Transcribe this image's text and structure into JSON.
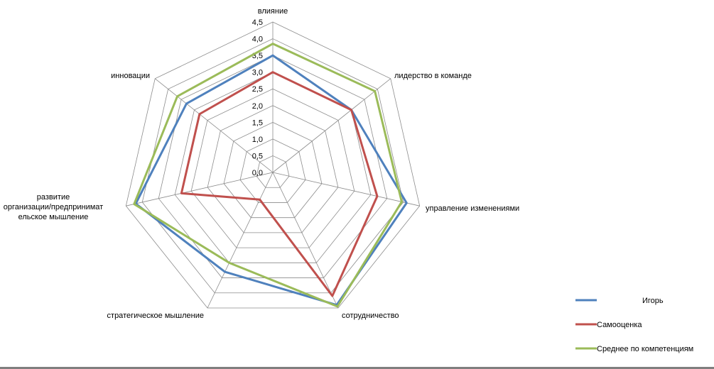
{
  "chart_data": {
    "type": "radar",
    "title": "",
    "categories": [
      "влияние",
      "лидерство в команде",
      "управление изменениями",
      "сотрудничество",
      "стратегическое мышление",
      "развитие организации/предпринимательское мышление",
      "инновации"
    ],
    "category_label_lines": [
      [
        "влияние"
      ],
      [
        "лидерство в команде"
      ],
      [
        "управление изменениями"
      ],
      [
        "сотрудничество"
      ],
      [
        "стратегическое мышление"
      ],
      [
        "развитие",
        "организации/предпринимат",
        "ельское мышление"
      ],
      [
        "инновации"
      ]
    ],
    "rlim": [
      0,
      4.5
    ],
    "ticks": [
      "0,0",
      "0,5",
      "1,0",
      "1,5",
      "2,0",
      "2,5",
      "3,0",
      "3,5",
      "4,0",
      "4,5"
    ],
    "grid": true,
    "legend_position": "bottom-right",
    "series": [
      {
        "name": "Игорь",
        "color": "#4f81bd",
        "values": [
          3.5,
          3.0,
          4.1,
          4.4,
          3.3,
          4.2,
          3.3
        ]
      },
      {
        "name": "Самооценка",
        "color": "#c0504d",
        "values": [
          3.0,
          3.0,
          3.2,
          4.1,
          0.9,
          2.8,
          2.8
        ]
      },
      {
        "name": "Среднее  по компетенциям",
        "color": "#9bbb59",
        "values": [
          3.85,
          3.9,
          3.95,
          4.45,
          3.0,
          4.25,
          3.65
        ]
      }
    ]
  }
}
